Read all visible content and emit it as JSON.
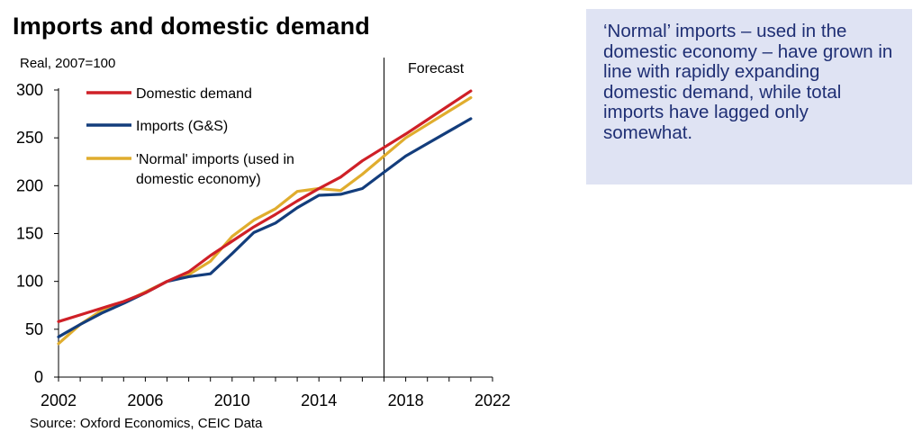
{
  "title": "Imports and domestic demand",
  "callout": {
    "text": "‘Normal’ imports – used in the domestic economy – have grown in line with rapidly expanding domestic demand, while total imports have lagged only somewhat."
  },
  "chart_data": {
    "type": "line",
    "title": "Imports and domestic demand",
    "unit_label": "Real, 2007=100",
    "source": "Source: Oxford Economics, CEIC Data",
    "xlim": [
      2002,
      2022
    ],
    "ylim": [
      0,
      300
    ],
    "xticks": [
      2002,
      2006,
      2010,
      2014,
      2018,
      2022
    ],
    "yticks": [
      0,
      50,
      100,
      150,
      200,
      250,
      300
    ],
    "grid": false,
    "legend_position": "top-left",
    "forecast_marker": {
      "x": 2017,
      "label": "Forecast"
    },
    "x": [
      2002,
      2003,
      2004,
      2005,
      2006,
      2007,
      2008,
      2009,
      2010,
      2011,
      2012,
      2013,
      2014,
      2015,
      2016,
      2017,
      2018,
      2019,
      2020,
      2021
    ],
    "series": [
      {
        "name": "Domestic demand",
        "color": "#cf2027",
        "values": [
          58,
          65,
          72,
          79,
          88,
          100,
          110,
          127,
          142,
          157,
          170,
          184,
          197,
          209,
          226,
          240,
          254,
          269,
          284,
          299
        ]
      },
      {
        "name": "Imports (G&S)",
        "color": "#133d7c",
        "values": [
          42,
          55,
          67,
          77,
          88,
          100,
          105,
          108,
          129,
          151,
          161,
          177,
          190,
          191,
          197,
          214,
          231,
          244,
          257,
          270
        ]
      },
      {
        "name": "'Normal' imports (used in domestic economy)",
        "legend_lines": [
          "'Normal' imports (used in",
          "domestic economy)"
        ],
        "color": "#e0ad2e",
        "values": [
          35,
          55,
          70,
          78,
          89,
          100,
          107,
          121,
          147,
          164,
          176,
          194,
          197,
          195,
          212,
          231,
          250,
          264,
          278,
          292
        ]
      }
    ]
  }
}
